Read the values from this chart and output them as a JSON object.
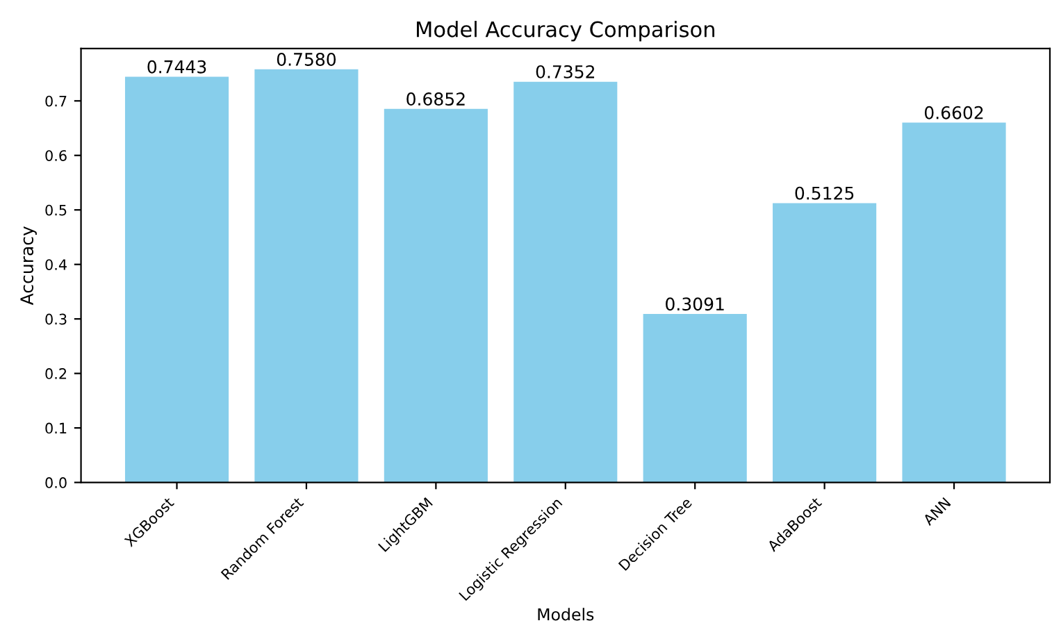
{
  "chart_data": {
    "type": "bar",
    "title": "Model Accuracy Comparison",
    "xlabel": "Models",
    "ylabel": "Accuracy",
    "categories": [
      "XGBoost",
      "Random Forest",
      "LightGBM",
      "Logistic Regression",
      "Decision Tree",
      "AdaBoost",
      "ANN"
    ],
    "values": [
      0.7443,
      0.758,
      0.6852,
      0.7352,
      0.3091,
      0.5125,
      0.6602
    ],
    "color": "#87ceeb",
    "value_labels": [
      "0.7443",
      "0.7580",
      "0.6852",
      "0.7352",
      "0.3091",
      "0.5125",
      "0.6602"
    ],
    "ylim": [
      0,
      0.796
    ],
    "yticks": [
      {
        "value": 0,
        "label": "0.0"
      },
      0.1,
      0.2,
      0.3,
      0.4,
      0.5,
      0.6,
      0.7
    ],
    "grid": false,
    "legend": false
  }
}
